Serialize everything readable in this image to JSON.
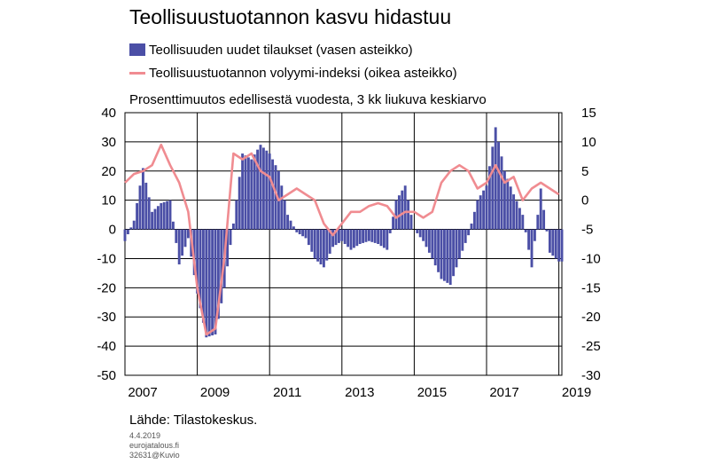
{
  "title": "Teollisuustuotannon kasvu hidastuu",
  "subtitle": "Prosenttimuutos edellisestä vuodesta, 3 kk liukuva keskiarvo",
  "source": "Lähde: Tilastokeskus.",
  "footer": {
    "date": "4.4.2019",
    "site": "eurojatalous.fi",
    "code": "32631@Kuvio"
  },
  "colors": {
    "bars": "#4b4fa6",
    "line": "#f08c91",
    "grid": "#000000"
  },
  "chart_data": {
    "type": "bar",
    "legend": [
      {
        "label": "Teollisuuden uudet tilaukset (vasen asteikko)",
        "type": "bar"
      },
      {
        "label": "Teollisuustuotannon volyymi-indeksi (oikea asteikko)",
        "type": "line"
      }
    ],
    "x_ticks": [
      "2007",
      "2009",
      "2011",
      "2013",
      "2015",
      "2017",
      "2019"
    ],
    "x_range": [
      "2007-01",
      "2019-02"
    ],
    "y_left": {
      "ticks": [
        "40",
        "30",
        "20",
        "10",
        "0",
        "-10",
        "-20",
        "-30",
        "-40",
        "-50"
      ],
      "lim": [
        -50,
        40
      ]
    },
    "y_right": {
      "ticks": [
        "15",
        "10",
        "5",
        "0",
        "-5",
        "-10",
        "-15",
        "-20",
        "-25",
        "-30"
      ],
      "lim": [
        -30,
        15
      ]
    },
    "series": [
      {
        "name": "Teollisuuden uudet tilaukset (vasen asteikko)",
        "type": "bar",
        "axis": "left",
        "points": [
          [
            "2007-01",
            -4
          ],
          [
            "2007-04",
            3
          ],
          [
            "2007-07",
            21
          ],
          [
            "2007-10",
            6
          ],
          [
            "2008-01",
            9
          ],
          [
            "2008-04",
            10
          ],
          [
            "2008-07",
            -12
          ],
          [
            "2008-10",
            -3
          ],
          [
            "2009-01",
            -22
          ],
          [
            "2009-04",
            -37
          ],
          [
            "2009-07",
            -36
          ],
          [
            "2009-10",
            -20
          ],
          [
            "2010-01",
            2
          ],
          [
            "2010-04",
            26
          ],
          [
            "2010-07",
            24
          ],
          [
            "2010-10",
            29
          ],
          [
            "2011-01",
            26
          ],
          [
            "2011-04",
            20
          ],
          [
            "2011-07",
            5
          ],
          [
            "2011-10",
            -1
          ],
          [
            "2012-01",
            -3
          ],
          [
            "2012-04",
            -10
          ],
          [
            "2012-07",
            -13
          ],
          [
            "2012-10",
            -6
          ],
          [
            "2013-01",
            -4
          ],
          [
            "2013-04",
            -7
          ],
          [
            "2013-07",
            -5
          ],
          [
            "2013-10",
            -4
          ],
          [
            "2014-01",
            -5
          ],
          [
            "2014-04",
            -7
          ],
          [
            "2014-07",
            10
          ],
          [
            "2014-10",
            15
          ],
          [
            "2015-01",
            0
          ],
          [
            "2015-04",
            -4
          ],
          [
            "2015-07",
            -10
          ],
          [
            "2015-10",
            -17
          ],
          [
            "2016-01",
            -19
          ],
          [
            "2016-04",
            -10
          ],
          [
            "2016-07",
            -2
          ],
          [
            "2016-10",
            10
          ],
          [
            "2017-01",
            15
          ],
          [
            "2017-04",
            35
          ],
          [
            "2017-07",
            20
          ],
          [
            "2017-10",
            12
          ],
          [
            "2018-01",
            5
          ],
          [
            "2018-04",
            -13
          ],
          [
            "2018-07",
            14
          ],
          [
            "2018-10",
            -8
          ],
          [
            "2019-01",
            -11
          ]
        ]
      },
      {
        "name": "Teollisuustuotannon volyymi-indeksi (oikea asteikko)",
        "type": "line",
        "axis": "right",
        "points": [
          [
            "2007-01",
            3
          ],
          [
            "2007-04",
            4.5
          ],
          [
            "2007-07",
            5
          ],
          [
            "2007-10",
            6
          ],
          [
            "2008-01",
            9.5
          ],
          [
            "2008-04",
            6
          ],
          [
            "2008-07",
            3
          ],
          [
            "2008-10",
            -2
          ],
          [
            "2009-01",
            -15
          ],
          [
            "2009-04",
            -23
          ],
          [
            "2009-07",
            -22
          ],
          [
            "2009-10",
            -10
          ],
          [
            "2010-01",
            8
          ],
          [
            "2010-04",
            7
          ],
          [
            "2010-07",
            8
          ],
          [
            "2010-10",
            5
          ],
          [
            "2011-01",
            4
          ],
          [
            "2011-04",
            0
          ],
          [
            "2011-07",
            1
          ],
          [
            "2011-10",
            2
          ],
          [
            "2012-01",
            1
          ],
          [
            "2012-04",
            0
          ],
          [
            "2012-07",
            -4
          ],
          [
            "2012-10",
            -6
          ],
          [
            "2013-01",
            -4
          ],
          [
            "2013-04",
            -2
          ],
          [
            "2013-07",
            -2
          ],
          [
            "2013-10",
            -1
          ],
          [
            "2014-01",
            -0.5
          ],
          [
            "2014-04",
            -1
          ],
          [
            "2014-07",
            -3
          ],
          [
            "2014-10",
            -2
          ],
          [
            "2015-01",
            -2
          ],
          [
            "2015-04",
            -3
          ],
          [
            "2015-07",
            -2
          ],
          [
            "2015-10",
            3
          ],
          [
            "2016-01",
            5
          ],
          [
            "2016-04",
            6
          ],
          [
            "2016-07",
            5
          ],
          [
            "2016-10",
            2
          ],
          [
            "2017-01",
            3
          ],
          [
            "2017-04",
            6
          ],
          [
            "2017-07",
            3
          ],
          [
            "2017-10",
            4
          ],
          [
            "2018-01",
            0
          ],
          [
            "2018-04",
            2
          ],
          [
            "2018-07",
            3
          ],
          [
            "2018-10",
            2
          ],
          [
            "2019-01",
            1
          ]
        ]
      }
    ]
  }
}
